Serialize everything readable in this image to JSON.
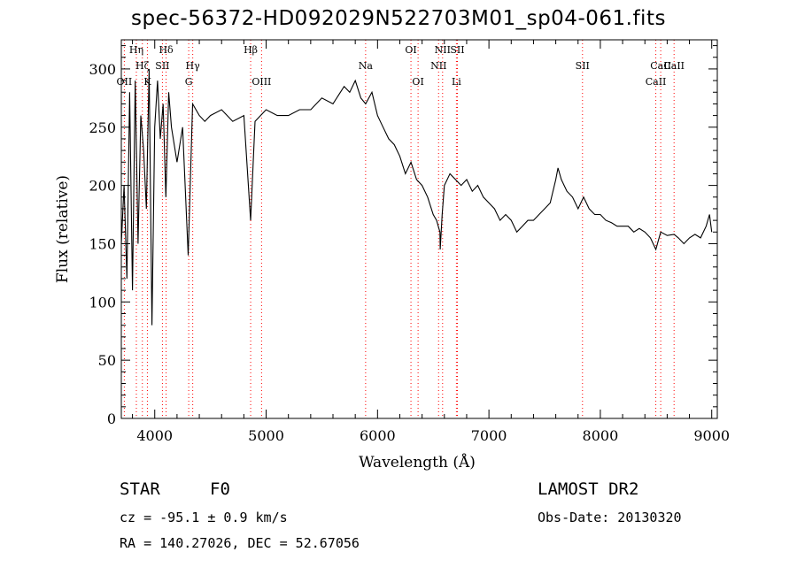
{
  "title": "spec-56372-HD092029N522703M01_sp04-061.fits",
  "info": {
    "star_type": "STAR",
    "spectral_class": "F0",
    "survey": "LAMOST DR2",
    "cz": "cz = -95.1 ± 0.9 km/s",
    "obs_date": "Obs-Date: 20130320",
    "radec": "RA = 140.27026, DEC =  52.67056"
  },
  "chart_data": {
    "type": "line",
    "title": "spec-56372-HD092029N522703M01_sp04-061.fits",
    "xlabel": "Wavelength (Å)",
    "ylabel": "Flux (relative)",
    "xlim": [
      3700,
      9050
    ],
    "ylim": [
      0,
      325
    ],
    "xticks": [
      4000,
      5000,
      6000,
      7000,
      8000,
      9000
    ],
    "yticks": [
      0,
      50,
      100,
      150,
      200,
      250,
      300
    ],
    "line_color": "#000000",
    "marker_color": "#ff0000",
    "lines": [
      {
        "name": "OII",
        "wavelength": 3727,
        "row": 3
      },
      {
        "name": "Hη",
        "wavelength": 3835,
        "row": 1
      },
      {
        "name": "Hζ",
        "wavelength": 3889,
        "row": 2
      },
      {
        "name": "K",
        "wavelength": 3934,
        "row": 3
      },
      {
        "name": "Hδ",
        "wavelength": 4102,
        "row": 1
      },
      {
        "name": "SII",
        "wavelength": 4069,
        "row": 2
      },
      {
        "name": "Hγ",
        "wavelength": 4341,
        "row": 2
      },
      {
        "name": "G",
        "wavelength": 4305,
        "row": 3
      },
      {
        "name": "Hβ",
        "wavelength": 4861,
        "row": 1
      },
      {
        "name": "OIII",
        "wavelength": 4959,
        "row": 3
      },
      {
        "name": "Na",
        "wavelength": 5893,
        "row": 2
      },
      {
        "name": "OI",
        "wavelength": 6300,
        "row": 1
      },
      {
        "name": "OI",
        "wavelength": 6364,
        "row": 3
      },
      {
        "name": "NII",
        "wavelength": 6548,
        "row": 2
      },
      {
        "name": "NII",
        "wavelength": 6584,
        "row": 1
      },
      {
        "name": "SII",
        "wavelength": 6717,
        "row": 1
      },
      {
        "name": "Li",
        "wavelength": 6708,
        "row": 3
      },
      {
        "name": "SII",
        "wavelength": 7840,
        "row": 2
      },
      {
        "name": "CaII",
        "wavelength": 8498,
        "row": 3
      },
      {
        "name": "CaII",
        "wavelength": 8542,
        "row": 2
      },
      {
        "name": "CaII",
        "wavelength": 8662,
        "row": 0
      }
    ],
    "x": [
      3700,
      3725,
      3750,
      3775,
      3800,
      3825,
      3850,
      3875,
      3900,
      3925,
      3950,
      3975,
      4000,
      4025,
      4050,
      4075,
      4100,
      4125,
      4150,
      4200,
      4250,
      4300,
      4340,
      4400,
      4450,
      4500,
      4600,
      4700,
      4800,
      4861,
      4900,
      5000,
      5100,
      5200,
      5300,
      5400,
      5500,
      5600,
      5700,
      5750,
      5800,
      5850,
      5893,
      5950,
      6000,
      6050,
      6100,
      6150,
      6200,
      6250,
      6300,
      6350,
      6400,
      6450,
      6500,
      6530,
      6560,
      6563,
      6580,
      6600,
      6650,
      6700,
      6750,
      6800,
      6850,
      6900,
      6950,
      7000,
      7050,
      7100,
      7150,
      7200,
      7250,
      7300,
      7350,
      7400,
      7450,
      7500,
      7550,
      7600,
      7620,
      7650,
      7700,
      7750,
      7800,
      7850,
      7900,
      7950,
      8000,
      8050,
      8100,
      8150,
      8200,
      8250,
      8300,
      8350,
      8400,
      8450,
      8498,
      8542,
      8600,
      8662,
      8700,
      8750,
      8800,
      8850,
      8900,
      8950,
      8980,
      9000
    ],
    "y": [
      150,
      200,
      120,
      280,
      110,
      290,
      150,
      260,
      230,
      180,
      300,
      80,
      250,
      290,
      240,
      270,
      190,
      280,
      250,
      220,
      250,
      140,
      270,
      260,
      255,
      260,
      265,
      255,
      260,
      170,
      255,
      265,
      260,
      260,
      265,
      265,
      275,
      270,
      285,
      280,
      290,
      275,
      270,
      280,
      260,
      250,
      240,
      235,
      225,
      210,
      220,
      205,
      200,
      190,
      175,
      170,
      160,
      145,
      175,
      200,
      210,
      205,
      200,
      205,
      195,
      200,
      190,
      185,
      180,
      170,
      175,
      170,
      160,
      165,
      170,
      170,
      175,
      180,
      185,
      205,
      215,
      205,
      195,
      190,
      180,
      190,
      180,
      175,
      175,
      170,
      168,
      165,
      165,
      165,
      160,
      163,
      160,
      155,
      145,
      160,
      157,
      158,
      155,
      150,
      155,
      158,
      155,
      165,
      175,
      160
    ]
  }
}
